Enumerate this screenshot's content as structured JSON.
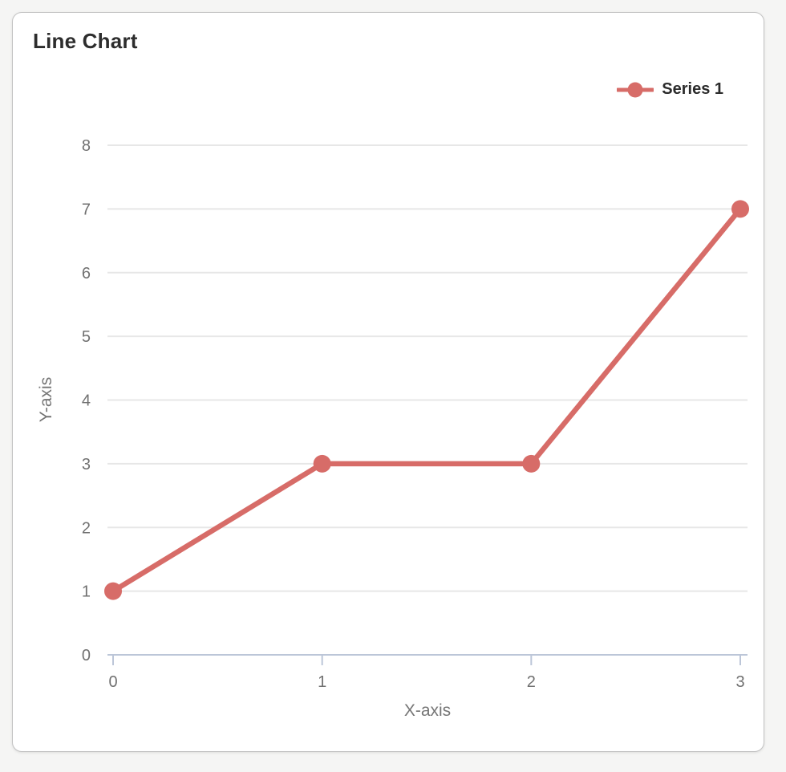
{
  "card": {
    "title": "Line Chart"
  },
  "legend": {
    "position": "top-right",
    "items": [
      {
        "label": "Series 1",
        "color": "#d76c68",
        "marker": "line-circle"
      }
    ]
  },
  "chart_data": {
    "type": "line",
    "title": "Line Chart",
    "xlabel": "X-axis",
    "ylabel": "Y-axis",
    "x": [
      0,
      1,
      2,
      3
    ],
    "series": [
      {
        "name": "Series 1",
        "color": "#d76c68",
        "values": [
          1,
          3,
          3,
          7
        ]
      }
    ],
    "xlim": [
      0,
      3
    ],
    "ylim": [
      0,
      8
    ],
    "x_ticks": [
      0,
      1,
      2,
      3
    ],
    "y_ticks": [
      0,
      1,
      2,
      3,
      4,
      5,
      6,
      7,
      8
    ],
    "grid": "horizontal-only",
    "legend_position": "top-right",
    "styles": {
      "grid_color": "#e7e7e7",
      "axis_color": "#bcc6d8",
      "tick_text_color": "#707070",
      "line_width": 6.5,
      "point_radius": 11
    }
  }
}
